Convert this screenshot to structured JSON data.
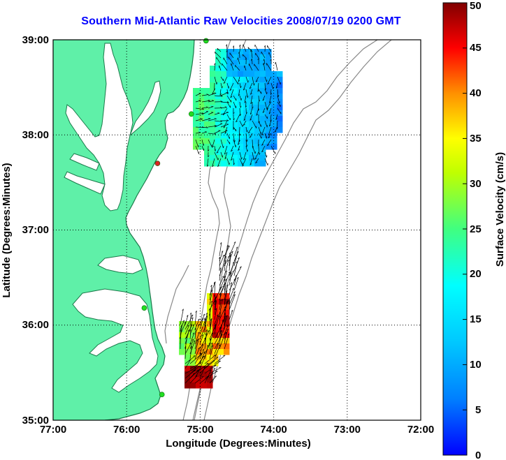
{
  "title": "Southern Mid-Atlantic Raw Velocities 2008/07/19 0200 GMT",
  "xlabel": "Longitude (Degrees:Minutes)",
  "ylabel": "Latitude (Degrees:Minutes)",
  "colorbar": {
    "label": "Surface Velocity (cm/s)",
    "ticks": [
      "0",
      "5",
      "10",
      "15",
      "20",
      "25",
      "30",
      "35",
      "40",
      "45",
      "50"
    ]
  },
  "axes": {
    "x_ticks": [
      "77:00",
      "76:00",
      "75:00",
      "74:00",
      "73:00",
      "72:00"
    ],
    "y_ticks": [
      "39:00",
      "38:00",
      "37:00",
      "36:00",
      "35:00"
    ]
  },
  "colors": {
    "land": "#5ff0a8",
    "water": "#ffffff",
    "coastline": "#1a7a4a",
    "bathymetry": "#888888",
    "stations": "#22dd22",
    "station_offline": "#dd2222"
  },
  "chart_data": {
    "type": "map-vector-field",
    "xlim": [
      -77,
      -72
    ],
    "ylim": [
      35,
      39
    ],
    "grid": true,
    "station_sites": [
      {
        "lon": -74.92,
        "lat": 38.99,
        "status": "online"
      },
      {
        "lon": -75.12,
        "lat": 38.22,
        "status": "online"
      },
      {
        "lon": -75.58,
        "lat": 37.7,
        "status": "offline"
      },
      {
        "lon": -75.76,
        "lat": 36.18,
        "status": "online"
      },
      {
        "lon": -75.52,
        "lat": 35.27,
        "status": "online"
      }
    ],
    "regions": [
      {
        "name": "northern",
        "lon_range": [
          -75.13,
          -74.05
        ],
        "lat_range": [
          37.72,
          38.86
        ],
        "speed_range_cm_s": [
          5,
          30
        ]
      },
      {
        "name": "southern",
        "lon_range": [
          -75.32,
          -74.6
        ],
        "lat_range": [
          35.38,
          36.78
        ],
        "speed_range_cm_s": [
          20,
          50
        ]
      }
    ]
  }
}
